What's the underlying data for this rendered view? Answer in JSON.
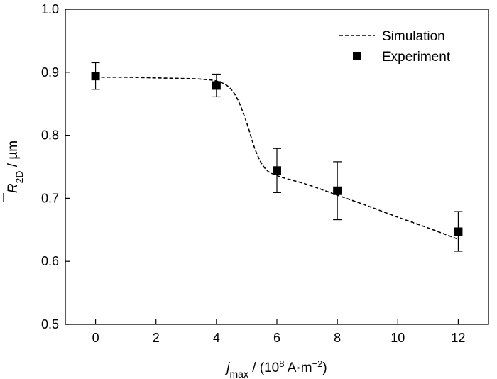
{
  "chart_data": {
    "type": "line",
    "title": "",
    "xlabel": {
      "main": "j",
      "sub": "max",
      "unit_prefix": " / (10",
      "unit_exp": "8",
      "unit_mid": " A·m",
      "unit_exp2": "−2",
      "unit_suffix": ")"
    },
    "ylabel": {
      "main": "R",
      "sub": "2D",
      "unit": " / µm"
    },
    "xlim": [
      -1,
      13
    ],
    "ylim": [
      0.5,
      1.0
    ],
    "xticks": [
      0,
      2,
      4,
      6,
      8,
      10,
      12
    ],
    "xtick_labels": [
      "0",
      "2",
      "4",
      "6",
      "8",
      "10",
      "12"
    ],
    "yticks": [
      0.5,
      0.6,
      0.7,
      0.8,
      0.9,
      1.0
    ],
    "ytick_labels": [
      "0.5",
      "0.6",
      "0.7",
      "0.8",
      "0.9",
      "1.0"
    ],
    "grid": false,
    "legend_position": "top-right",
    "series": [
      {
        "name": "Simulation",
        "style": "dashed-line",
        "color": "#000000",
        "x": [
          0,
          1,
          2,
          3,
          3.5,
          4,
          4.4,
          4.7,
          5.0,
          5.3,
          5.6,
          6.0,
          7.0,
          8.0,
          9.0,
          10.0,
          11.0,
          12.0
        ],
        "y": [
          0.892,
          0.892,
          0.891,
          0.89,
          0.889,
          0.886,
          0.877,
          0.857,
          0.82,
          0.775,
          0.748,
          0.736,
          0.722,
          0.705,
          0.688,
          0.67,
          0.653,
          0.635
        ]
      },
      {
        "name": "Experiment",
        "style": "square-markers-with-error-bars",
        "color": "#000000",
        "x": [
          0,
          4,
          6,
          8,
          12
        ],
        "y": [
          0.894,
          0.879,
          0.744,
          0.712,
          0.647
        ],
        "err_low": [
          0.873,
          0.861,
          0.709,
          0.666,
          0.616
        ],
        "err_high": [
          0.915,
          0.897,
          0.779,
          0.758,
          0.679
        ]
      }
    ]
  }
}
